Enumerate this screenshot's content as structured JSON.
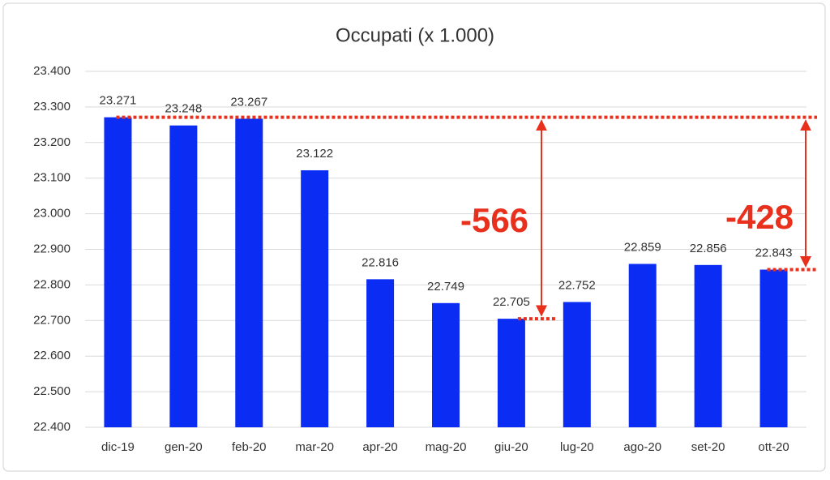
{
  "chart_data": {
    "type": "bar",
    "title": "Occupati (x 1.000)",
    "categories": [
      "dic-19",
      "gen-20",
      "feb-20",
      "mar-20",
      "apr-20",
      "mag-20",
      "giu-20",
      "lug-20",
      "ago-20",
      "set-20",
      "ott-20"
    ],
    "values": [
      23271,
      23248,
      23267,
      23122,
      22816,
      22749,
      22705,
      22752,
      22859,
      22856,
      22843
    ],
    "value_labels": [
      "23.271",
      "23.248",
      "23.267",
      "23.122",
      "22.816",
      "22.749",
      "22.705",
      "22.752",
      "22.859",
      "22.856",
      "22.843"
    ],
    "color": "#0b2cf3",
    "ylim": [
      22400,
      23400
    ],
    "yticks": [
      {
        "value": 22400,
        "label": "22.400"
      },
      {
        "value": 22500,
        "label": "22.500"
      },
      {
        "value": 22600,
        "label": "22.600"
      },
      {
        "value": 22700,
        "label": "22.700"
      },
      {
        "value": 22800,
        "label": "22.800"
      },
      {
        "value": 22900,
        "label": "22.900"
      },
      {
        "value": 23000,
        "label": "23.000"
      },
      {
        "value": 23100,
        "label": "23.100"
      },
      {
        "value": 23200,
        "label": "23.200"
      },
      {
        "value": 23300,
        "label": "23.300"
      },
      {
        "value": 23400,
        "label": "23.400"
      }
    ],
    "grid": true,
    "annotations": [
      {
        "text": "-566",
        "color": "#e8301c"
      },
      {
        "text": "-428",
        "color": "#e8301c"
      }
    ]
  }
}
